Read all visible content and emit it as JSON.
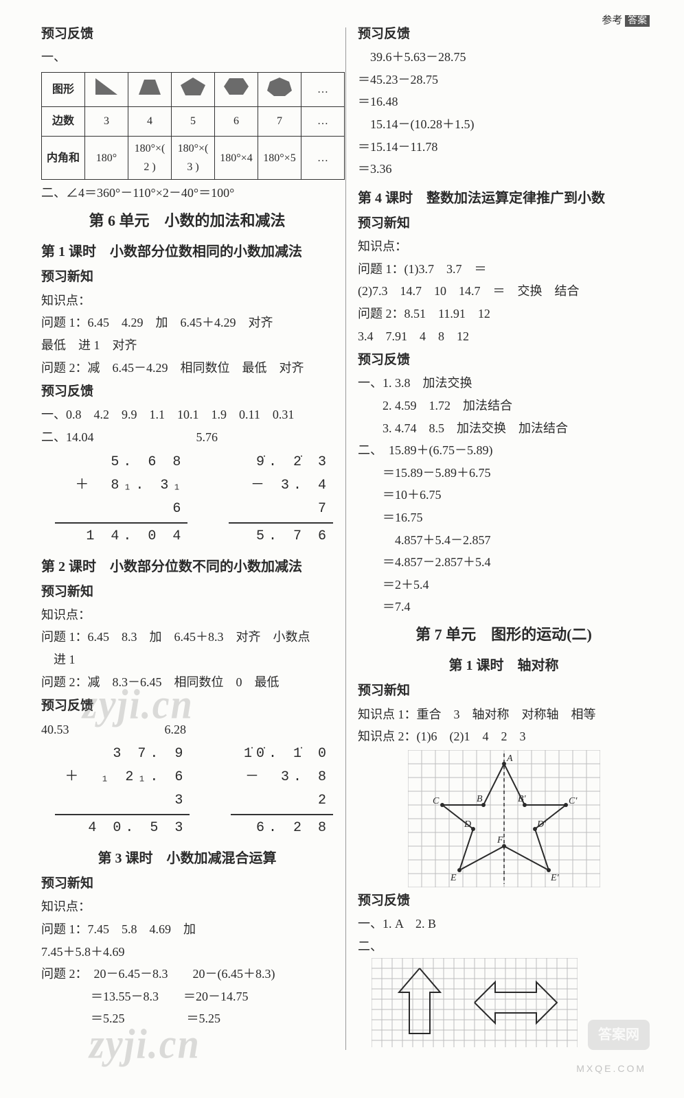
{
  "header": {
    "ref": "参考",
    "ans": "答案"
  },
  "left": {
    "fb": "预习反馈",
    "yi": "一、",
    "table": {
      "row_labels": [
        "图形",
        "边数",
        "内角和"
      ],
      "sides": [
        "3",
        "4",
        "5",
        "6",
        "7",
        "…"
      ],
      "angles": [
        "180°",
        "180°×( 2 )",
        "180°×( 3 )",
        "180°×4",
        "180°×5",
        "…"
      ],
      "dots_col": "…",
      "shape_colors": [
        "#6b6b6b",
        "#6b6b6b",
        "#6b6b6b",
        "#6b6b6b",
        "#6b6b6b"
      ]
    },
    "eq2": "二、∠4＝360°－110°×2－40°＝100°",
    "unit6": "第 6 单元　小数的加法和减法",
    "l1": {
      "title": "第 1 课时　小数部分位数相同的小数加减法",
      "xz": "预习新知",
      "kp": "知识点：",
      "q1": "问题 1：6.45　4.29　加　6.45＋4.29　对齐",
      "q1b": "最低　进 1　对齐",
      "q2": "问题 2：减　6.45－4.29　相同数位　最低　对齐",
      "fb": "预习反馈",
      "f1": "一、0.8　4.2　9.9　1.1　10.1　1.9　0.11　0.31",
      "f2a": "二、14.04",
      "f2b": "5.76",
      "calcA": {
        "a": "5. 6 8",
        "b": "＋　8₁. 3₁ 6",
        "r": "1 4. 0 4"
      },
      "calcB": {
        "a": "9̇. 2̇ 3",
        "b": "－ 3. 4 7",
        "r": "5. 7 6"
      }
    },
    "l2": {
      "title": "第 2 课时　小数部分位数不同的小数加减法",
      "xz": "预习新知",
      "kp": "知识点：",
      "q1": "问题 1：6.45　8.3　加　6.45＋8.3　对齐　小数点",
      "q1b": "　进 1",
      "q2": "问题 2：减　8.3－6.45　相同数位　0　最低",
      "fb": "预习反馈",
      "f1a": "40.53",
      "f1b": "6.28",
      "calcA": {
        "a": "3 7. 9",
        "b": "＋　₁ 2₁. 6 3",
        "r": "4 0. 5 3"
      },
      "calcB": {
        "a": "1̇0̇. 1̇ 0",
        "b": "－　3. 8 2",
        "r": "6. 2 8"
      }
    },
    "l3": {
      "title": "第 3 课时　小数加减混合运算",
      "xz": "预习新知",
      "kp": "知识点：",
      "q1": "问题 1：7.45　5.8　4.69　加",
      "q1b": "7.45＋5.8＋4.69",
      "q2": "问题 2：　20－6.45－8.3　　20－(6.45＋8.3)",
      "q2a": "　　　　＝13.55－8.3　　＝20－14.75",
      "q2b": "　　　　＝5.25　　　　　＝5.25"
    }
  },
  "right": {
    "fb": "预习反馈",
    "c1_1": "　39.6＋5.63－28.75",
    "c1_2": "＝45.23－28.75",
    "c1_3": "＝16.48",
    "c2_1": "　15.14－(10.28＋1.5)",
    "c2_2": "＝15.14－11.78",
    "c2_3": "＝3.36",
    "l4": {
      "title": "第 4 课时　整数加法运算定律推广到小数",
      "xz": "预习新知",
      "kp": "知识点：",
      "q1": "问题 1：(1)3.7　3.7　＝",
      "q1b": "(2)7.3　14.7　10　14.7　＝　交换　结合",
      "q2": "问题 2：8.51　11.91　12",
      "q2b": "3.4　7.91　4　8　12",
      "fb": "预习反馈",
      "f1": "一、1. 3.8　加法交换",
      "f2": "　　2. 4.59　1.72　加法结合",
      "f3": "　　3. 4.74　8.5　加法交换　加法结合",
      "f4": "二、　15.89＋(6.75－5.89)",
      "f4a": "　　＝15.89－5.89＋6.75",
      "f4b": "　　＝10＋6.75",
      "f4c": "　　＝16.75",
      "f5": "　　　4.857＋5.4－2.857",
      "f5a": "　　＝4.857－2.857＋5.4",
      "f5b": "　　＝2＋5.4",
      "f5c": "　　＝7.4"
    },
    "unit7": "第 7 单元　图形的运动(二)",
    "l7_1": {
      "title": "第 1 课时　轴对称",
      "xz": "预习新知",
      "kp1": "知识点 1：重合　3　轴对称　对称轴　相等",
      "kp2": "知识点 2：(1)6　(2)1　4　2　3",
      "fb": "预习反馈",
      "f1": "一、1. A　2. B",
      "f2": "二、"
    },
    "star": {
      "grid_color": "#bdbdbd",
      "line_color": "#2a2a2a",
      "labels": [
        "A",
        "B",
        "B'",
        "C",
        "C'",
        "D",
        "D'",
        "E",
        "E'",
        "F"
      ]
    },
    "arrows": {
      "grid_color": "#bdbdbd",
      "line_color": "#2a2a2a"
    }
  },
  "wm": {
    "zyji": "zyji.cn",
    "mxqe": "MXQE.COM",
    "badge": "答案网"
  }
}
